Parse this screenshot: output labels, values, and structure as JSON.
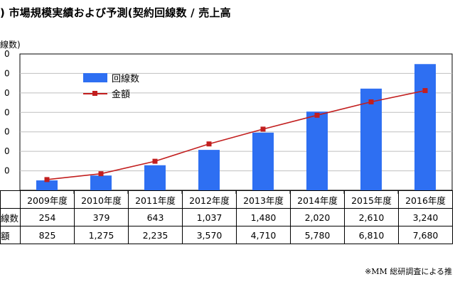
{
  "title": ") 市場規模実績および予測(契約回線数 / 売上高",
  "unit_fragment": "線数)",
  "source_note": "※MM 総研調査による推",
  "colors": {
    "bar": "#2e6ff2",
    "line": "#c21e1e",
    "grid": "#bfbfbf"
  },
  "chart_data": {
    "type": "bar",
    "categories": [
      "2009年度",
      "2010年度",
      "2011年度",
      "2012年度",
      "2013年度",
      "2014年度",
      "2015年度",
      "2016年度"
    ],
    "series": [
      {
        "name": "回線数",
        "type": "bar",
        "values": [
          254,
          379,
          643,
          1037,
          1480,
          2020,
          2610,
          3240
        ]
      },
      {
        "name": "金額",
        "type": "line",
        "values": [
          825,
          1275,
          2235,
          3570,
          4710,
          5780,
          6810,
          7680
        ]
      }
    ],
    "legend": {
      "position": "top-left"
    },
    "grid": true,
    "y_tick_labels_visible": [
      "0",
      "0",
      "0",
      "0",
      "0",
      "0",
      "0"
    ]
  },
  "table": {
    "row_headers": [
      "線数",
      "額"
    ],
    "rows": [
      [
        "254",
        "379",
        "643",
        "1,037",
        "1,480",
        "2,020",
        "2,610",
        "3,240"
      ],
      [
        "825",
        "1,275",
        "2,235",
        "3,570",
        "4,710",
        "5,780",
        "6,810",
        "7,680"
      ]
    ]
  }
}
